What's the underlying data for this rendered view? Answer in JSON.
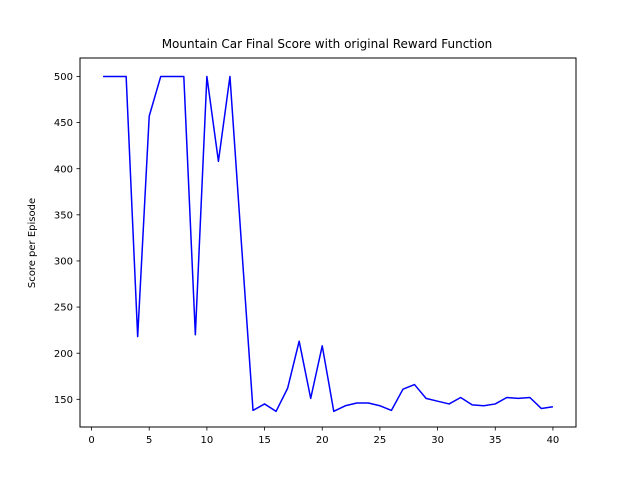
{
  "chart_data": {
    "type": "line",
    "title": "Mountain Car Final Score with original Reward Function",
    "xlabel": "",
    "ylabel": "Score per Episode",
    "xlim": [
      -1,
      42
    ],
    "ylim": [
      120,
      520
    ],
    "xticks": [
      0,
      5,
      10,
      15,
      20,
      25,
      30,
      35,
      40
    ],
    "yticks": [
      150,
      200,
      250,
      300,
      350,
      400,
      450,
      500
    ],
    "grid": false,
    "series": [
      {
        "color": "#0000ff",
        "x": [
          1,
          2,
          3,
          4,
          5,
          6,
          7,
          8,
          9,
          10,
          11,
          12,
          13,
          14,
          15,
          16,
          17,
          18,
          19,
          20,
          21,
          22,
          23,
          24,
          25,
          26,
          27,
          28,
          29,
          30,
          31,
          32,
          33,
          34,
          35,
          36,
          37,
          38,
          39,
          40
        ],
        "values": [
          500,
          500,
          500,
          218,
          457,
          500,
          500,
          500,
          220,
          500,
          408,
          500,
          318,
          138,
          145,
          137,
          162,
          213,
          151,
          208,
          137,
          143,
          146,
          146,
          143,
          138,
          161,
          166,
          151,
          148,
          145,
          152,
          144,
          143,
          145,
          152,
          151,
          152,
          140,
          142
        ]
      }
    ]
  }
}
